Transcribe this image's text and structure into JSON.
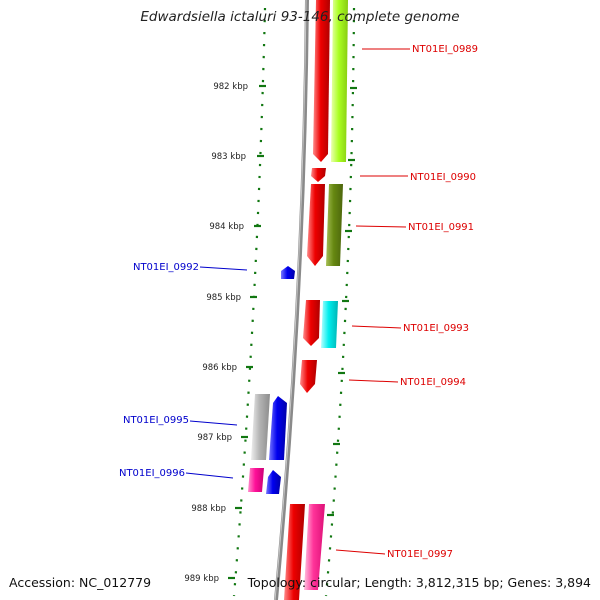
{
  "title": "Edwardsiella ictaluri 93-146, complete genome",
  "footer": {
    "accession": "Accession: NC_012779",
    "summary": "Topology: circular; Length: 3,812,315 bp; Genes: 3,894"
  },
  "colors": {
    "backbone": "#8a8a8a",
    "forward_label": "#dd0000",
    "reverse_label": "#0000cc",
    "tick": "#117711",
    "red": "#ee0000",
    "lime": "#aaff22",
    "olive": "#668811",
    "cyan": "#00eeee",
    "blue": "#0000ee",
    "gray": "#b4b4b4",
    "magenta": "#ff1199",
    "pink": "#ff3399"
  },
  "scale_labels": [
    "982 kbp",
    "983 kbp",
    "984 kbp",
    "985 kbp",
    "986 kbp",
    "987 kbp",
    "988 kbp",
    "989 kbp"
  ],
  "gene_labels": [
    {
      "text": "NT01EI_0989",
      "strand": "forward"
    },
    {
      "text": "NT01EI_0990",
      "strand": "forward"
    },
    {
      "text": "NT01EI_0991",
      "strand": "forward"
    },
    {
      "text": "NT01EI_0992",
      "strand": "reverse"
    },
    {
      "text": "NT01EI_0993",
      "strand": "forward"
    },
    {
      "text": "NT01EI_0994",
      "strand": "forward"
    },
    {
      "text": "NT01EI_0995",
      "strand": "reverse"
    },
    {
      "text": "NT01EI_0996",
      "strand": "reverse"
    },
    {
      "text": "NT01EI_0997",
      "strand": "forward"
    }
  ]
}
